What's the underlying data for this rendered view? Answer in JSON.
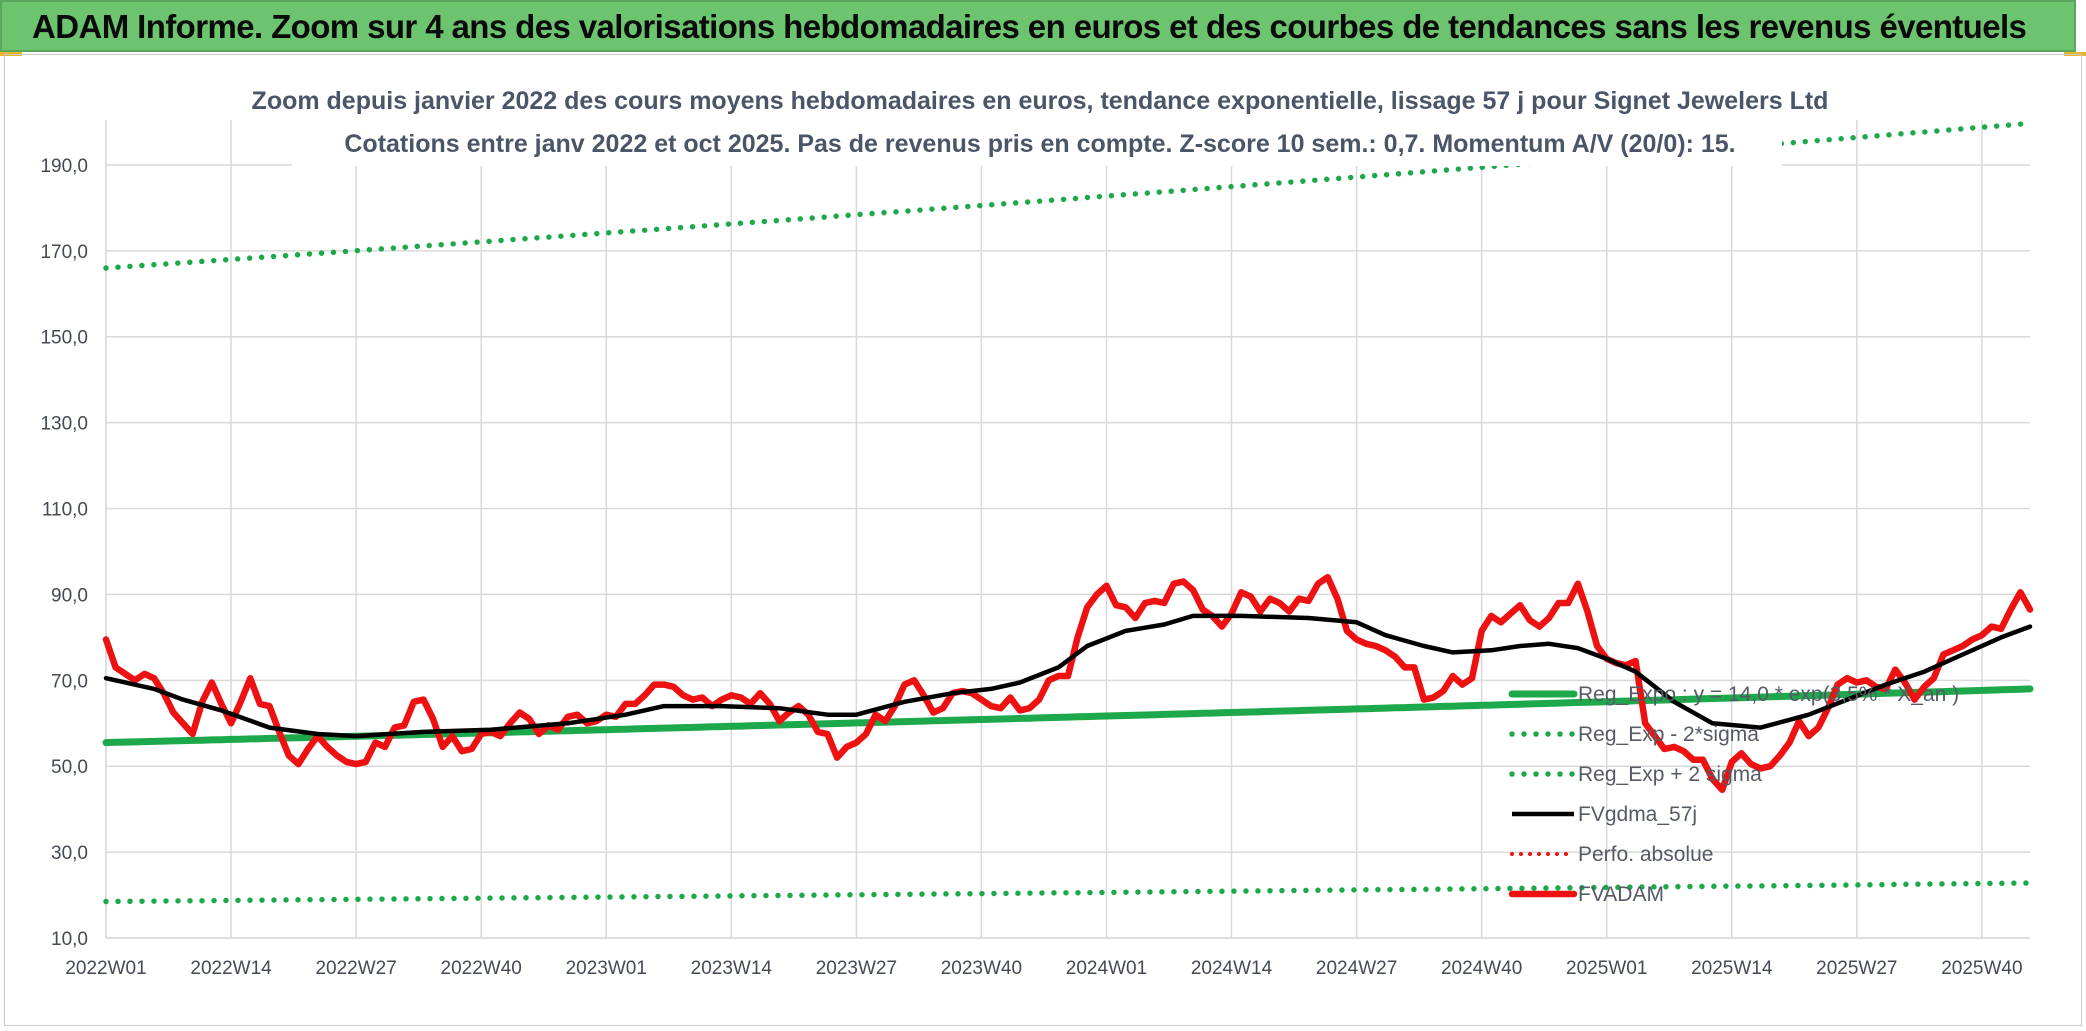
{
  "header": {
    "title": "ADAM Informe. Zoom sur 4 ans des valorisations hebdomadaires en euros et des courbes de tendances sans les revenus éventuels"
  },
  "colors": {
    "header_bg": "#6cc46f",
    "trend_green": "#1ea84c",
    "dotted_green": "#1ea84c",
    "smoothing_black": "#000000",
    "price_red": "#ee1111",
    "perf_red": "#ee1111",
    "grid": "#d9d9d9"
  },
  "chart_data": {
    "type": "line",
    "title_line1": "Zoom depuis janvier 2022 des cours moyens hebdomadaires en euros, tendance exponentielle, lissage 57 j pour Signet Jewelers Ltd",
    "title_line2": "Cotations entre janv 2022 et oct 2025. Pas de revenus pris en compte. Z-score 10 sem.: 0,7. Momentum A/V (20/0): 15.",
    "xlabel": "",
    "ylabel": "",
    "ylim": [
      10,
      200
    ],
    "grid": true,
    "y_ticks": [
      "10,0",
      "30,0",
      "50,0",
      "70,0",
      "90,0",
      "110,0",
      "130,0",
      "150,0",
      "170,0",
      "190,0"
    ],
    "y_tick_values": [
      10,
      30,
      50,
      70,
      90,
      110,
      130,
      150,
      170,
      190
    ],
    "x_tick_labels": [
      "2022W01",
      "2022W14",
      "2022W27",
      "2022W40",
      "2023W01",
      "2023W14",
      "2023W27",
      "2023W40",
      "2024W01",
      "2024W14",
      "2024W27",
      "2024W40",
      "2025W01",
      "2025W14",
      "2025W27",
      "2025W40"
    ],
    "x_tick_weeks": [
      0,
      13,
      26,
      39,
      52,
      65,
      78,
      91,
      104,
      117,
      130,
      143,
      156,
      169,
      182,
      195
    ],
    "n_weeks": 201,
    "legend_position": "bottom-right inside plot",
    "series": [
      {
        "name": "Reg_Expo : y = 14,0 * exp(3,5% * X_an )",
        "style": "solid-thick",
        "color": "#1ea84c",
        "start": 55.5,
        "end": 68.0
      },
      {
        "name": "Reg_Exp - 2*sigma",
        "style": "dotted",
        "color": "#1ea84c",
        "start": 18.5,
        "end": 22.8
      },
      {
        "name": "Reg_Exp + 2 sigma",
        "style": "dotted",
        "color": "#1ea84c",
        "start": 166.0,
        "end": 199.7
      },
      {
        "name": "FVgdma_57j",
        "style": "solid",
        "color": "#000000",
        "keypoints": [
          [
            0,
            70.5
          ],
          [
            5,
            68.0
          ],
          [
            8,
            65.5
          ],
          [
            12,
            63.0
          ],
          [
            17,
            59.0
          ],
          [
            22,
            57.5
          ],
          [
            26,
            57.0
          ],
          [
            33,
            58.0
          ],
          [
            40,
            58.5
          ],
          [
            48,
            60.0
          ],
          [
            54,
            62.0
          ],
          [
            58,
            64.0
          ],
          [
            64,
            64.0
          ],
          [
            70,
            63.5
          ],
          [
            75,
            62.0
          ],
          [
            78,
            62.0
          ],
          [
            83,
            65.0
          ],
          [
            88,
            67.0
          ],
          [
            92,
            68.0
          ],
          [
            95,
            69.5
          ],
          [
            99,
            73.0
          ],
          [
            102,
            78.0
          ],
          [
            106,
            81.5
          ],
          [
            110,
            83.0
          ],
          [
            113,
            85.0
          ],
          [
            118,
            85.0
          ],
          [
            125,
            84.5
          ],
          [
            130,
            83.5
          ],
          [
            133,
            80.5
          ],
          [
            137,
            78.0
          ],
          [
            140,
            76.5
          ],
          [
            144,
            77.0
          ],
          [
            147,
            78.0
          ],
          [
            150,
            78.5
          ],
          [
            153,
            77.5
          ],
          [
            156,
            75.0
          ],
          [
            159,
            72.0
          ],
          [
            163,
            65.0
          ],
          [
            167,
            60.0
          ],
          [
            172,
            59.0
          ],
          [
            177,
            62.0
          ],
          [
            181,
            65.5
          ],
          [
            185,
            69.0
          ],
          [
            189,
            72.0
          ],
          [
            193,
            76.0
          ],
          [
            197,
            80.0
          ],
          [
            200,
            82.5
          ]
        ]
      },
      {
        "name": "Perfo. absolue",
        "style": "dotted",
        "color": "#ee1111",
        "values": []
      },
      {
        "name": "FVADAM",
        "style": "solid-thick",
        "color": "#ee1111",
        "keypoints": [
          [
            0,
            79.5
          ],
          [
            1,
            73.0
          ],
          [
            3,
            70.0
          ],
          [
            4,
            71.5
          ],
          [
            5,
            70.5
          ],
          [
            6,
            67.0
          ],
          [
            7,
            62.5
          ],
          [
            8,
            60.0
          ],
          [
            9,
            57.5
          ],
          [
            10,
            65.0
          ],
          [
            11,
            69.5
          ],
          [
            12,
            64.5
          ],
          [
            13,
            60.0
          ],
          [
            14,
            65.0
          ],
          [
            15,
            70.5
          ],
          [
            16,
            64.5
          ],
          [
            17,
            64.0
          ],
          [
            18,
            58.0
          ],
          [
            19,
            52.5
          ],
          [
            20,
            50.5
          ],
          [
            21,
            54.0
          ],
          [
            22,
            57.0
          ],
          [
            23,
            54.5
          ],
          [
            24,
            52.5
          ],
          [
            25,
            51.0
          ],
          [
            26,
            50.5
          ],
          [
            27,
            51.0
          ],
          [
            28,
            55.5
          ],
          [
            29,
            54.5
          ],
          [
            30,
            59.0
          ],
          [
            31,
            59.5
          ],
          [
            32,
            65.0
          ],
          [
            33,
            65.5
          ],
          [
            34,
            61.0
          ],
          [
            35,
            54.5
          ],
          [
            36,
            57.0
          ],
          [
            37,
            53.5
          ],
          [
            38,
            54.0
          ],
          [
            39,
            57.5
          ],
          [
            40,
            58.0
          ],
          [
            41,
            57.0
          ],
          [
            42,
            60.0
          ],
          [
            43,
            62.5
          ],
          [
            44,
            61.0
          ],
          [
            45,
            57.5
          ],
          [
            46,
            59.5
          ],
          [
            47,
            58.5
          ],
          [
            48,
            61.5
          ],
          [
            49,
            62.0
          ],
          [
            50,
            60.0
          ],
          [
            51,
            60.5
          ],
          [
            52,
            62.0
          ],
          [
            53,
            61.5
          ],
          [
            54,
            64.5
          ],
          [
            55,
            64.5
          ],
          [
            56,
            66.5
          ],
          [
            57,
            69.0
          ],
          [
            58,
            69.0
          ],
          [
            59,
            68.5
          ],
          [
            60,
            66.5
          ],
          [
            61,
            65.5
          ],
          [
            62,
            66.0
          ],
          [
            63,
            64.0
          ],
          [
            64,
            65.5
          ],
          [
            65,
            66.5
          ],
          [
            66,
            66.0
          ],
          [
            67,
            64.5
          ],
          [
            68,
            67.0
          ],
          [
            69,
            64.5
          ],
          [
            70,
            60.5
          ],
          [
            71,
            62.5
          ],
          [
            72,
            64.0
          ],
          [
            73,
            62.0
          ],
          [
            74,
            58.0
          ],
          [
            75,
            57.5
          ],
          [
            76,
            52.0
          ],
          [
            77,
            54.5
          ],
          [
            78,
            55.5
          ],
          [
            79,
            57.5
          ],
          [
            80,
            62.0
          ],
          [
            81,
            60.5
          ],
          [
            82,
            64.0
          ],
          [
            83,
            69.0
          ],
          [
            84,
            70.0
          ],
          [
            85,
            66.5
          ],
          [
            86,
            62.5
          ],
          [
            87,
            63.5
          ],
          [
            88,
            67.0
          ],
          [
            89,
            67.5
          ],
          [
            90,
            67.0
          ],
          [
            91,
            65.5
          ],
          [
            92,
            64.0
          ],
          [
            93,
            63.5
          ],
          [
            94,
            66.0
          ],
          [
            95,
            63.0
          ],
          [
            96,
            63.5
          ],
          [
            97,
            65.5
          ],
          [
            98,
            70.0
          ],
          [
            99,
            71.0
          ],
          [
            100,
            71.0
          ],
          [
            101,
            80.0
          ],
          [
            102,
            87.0
          ],
          [
            103,
            90.0
          ],
          [
            104,
            92.0
          ],
          [
            105,
            87.5
          ],
          [
            106,
            87.0
          ],
          [
            107,
            84.5
          ],
          [
            108,
            88.0
          ],
          [
            109,
            88.5
          ],
          [
            110,
            88.0
          ],
          [
            111,
            92.5
          ],
          [
            112,
            93.0
          ],
          [
            113,
            91.0
          ],
          [
            114,
            86.5
          ],
          [
            115,
            85.0
          ],
          [
            116,
            82.5
          ],
          [
            117,
            85.5
          ],
          [
            118,
            90.5
          ],
          [
            119,
            89.5
          ],
          [
            120,
            86.0
          ],
          [
            121,
            89.0
          ],
          [
            122,
            88.0
          ],
          [
            123,
            86.0
          ],
          [
            124,
            89.0
          ],
          [
            125,
            88.5
          ],
          [
            126,
            92.5
          ],
          [
            127,
            94.0
          ],
          [
            128,
            89.0
          ],
          [
            129,
            81.5
          ],
          [
            130,
            79.5
          ],
          [
            131,
            78.5
          ],
          [
            132,
            78.0
          ],
          [
            133,
            77.0
          ],
          [
            134,
            75.5
          ],
          [
            135,
            73.0
          ],
          [
            136,
            73.0
          ],
          [
            137,
            65.5
          ],
          [
            138,
            66.0
          ],
          [
            139,
            67.5
          ],
          [
            140,
            71.0
          ],
          [
            141,
            69.0
          ],
          [
            142,
            70.5
          ],
          [
            143,
            81.5
          ],
          [
            144,
            85.0
          ],
          [
            145,
            83.5
          ],
          [
            146,
            85.5
          ],
          [
            147,
            87.5
          ],
          [
            148,
            84.0
          ],
          [
            149,
            82.5
          ],
          [
            150,
            84.5
          ],
          [
            151,
            88.0
          ],
          [
            152,
            88.0
          ],
          [
            153,
            92.5
          ],
          [
            154,
            86.0
          ],
          [
            155,
            78.0
          ],
          [
            156,
            75.0
          ],
          [
            157,
            74.0
          ],
          [
            158,
            73.5
          ],
          [
            159,
            74.5
          ],
          [
            160,
            60.0
          ],
          [
            161,
            57.0
          ],
          [
            162,
            54.0
          ],
          [
            163,
            54.5
          ],
          [
            164,
            53.5
          ],
          [
            165,
            51.5
          ],
          [
            166,
            51.5
          ],
          [
            167,
            47.0
          ],
          [
            168,
            44.5
          ],
          [
            169,
            51.0
          ],
          [
            170,
            53.0
          ],
          [
            171,
            50.5
          ],
          [
            172,
            49.5
          ],
          [
            173,
            50.0
          ],
          [
            174,
            52.5
          ],
          [
            175,
            55.5
          ],
          [
            176,
            60.5
          ],
          [
            177,
            57.0
          ],
          [
            178,
            59.0
          ],
          [
            179,
            63.5
          ],
          [
            180,
            69.0
          ],
          [
            181,
            70.5
          ],
          [
            182,
            69.5
          ],
          [
            183,
            70.0
          ],
          [
            184,
            68.5
          ],
          [
            185,
            68.0
          ],
          [
            186,
            72.5
          ],
          [
            187,
            69.5
          ],
          [
            188,
            65.5
          ],
          [
            189,
            68.5
          ],
          [
            190,
            70.5
          ],
          [
            191,
            76.0
          ],
          [
            192,
            77.0
          ],
          [
            193,
            78.0
          ],
          [
            194,
            79.5
          ],
          [
            195,
            80.5
          ],
          [
            196,
            82.5
          ],
          [
            197,
            82.0
          ],
          [
            198,
            86.5
          ],
          [
            199,
            90.5
          ],
          [
            200,
            86.5
          ]
        ]
      }
    ]
  }
}
